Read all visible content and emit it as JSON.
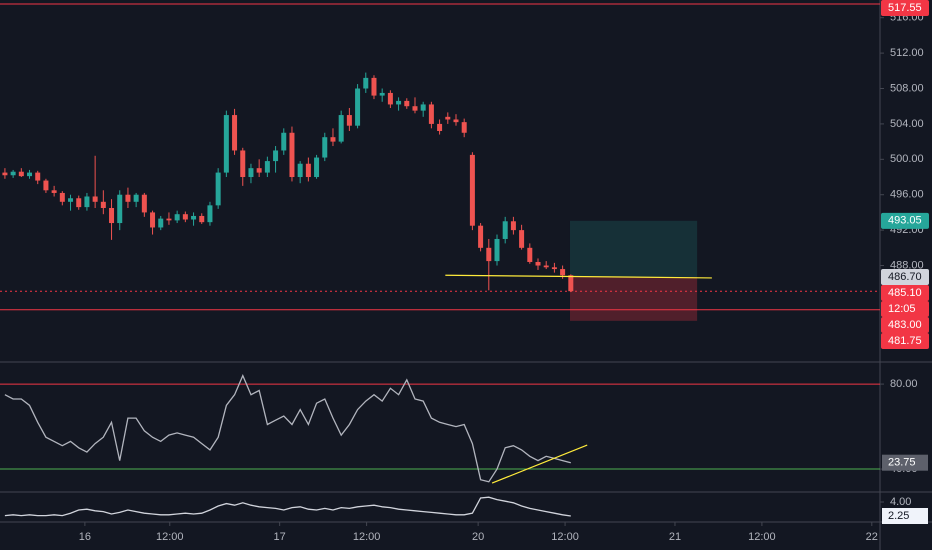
{
  "chart_data": [
    {
      "type": "candlestick",
      "up_color": "#26a69a",
      "down_color": "#ef5350",
      "ohlc": [
        [
          498.5,
          499,
          497.8,
          498.2
        ],
        [
          498.2,
          498.8,
          497.9,
          498.6
        ],
        [
          498.6,
          499,
          498,
          498.1
        ],
        [
          498.1,
          498.8,
          497.8,
          498.5
        ],
        [
          498.5,
          498.7,
          497.2,
          497.6
        ],
        [
          497.6,
          497.8,
          496.2,
          496.5
        ],
        [
          496.5,
          497,
          495.8,
          496.2
        ],
        [
          496.2,
          496.4,
          494.8,
          495.2
        ],
        [
          495.2,
          496,
          494.2,
          495.6
        ],
        [
          495.6,
          495.9,
          494.3,
          494.6
        ],
        [
          494.6,
          496.2,
          494.2,
          495.8
        ],
        [
          495.8,
          500.4,
          494.5,
          495.2
        ],
        [
          495.2,
          496.5,
          493.8,
          494.5
        ],
        [
          494.5,
          495.5,
          490.9,
          492.8
        ],
        [
          492.8,
          496.5,
          492,
          496
        ],
        [
          496,
          496.8,
          494.5,
          495.2
        ],
        [
          495.2,
          496.2,
          494.6,
          496
        ],
        [
          496,
          496.2,
          493.5,
          494
        ],
        [
          494,
          494.2,
          491.5,
          492.3
        ],
        [
          492.3,
          493.6,
          492,
          493.3
        ],
        [
          493.3,
          494,
          492.6,
          493.1
        ],
        [
          493.1,
          494.2,
          492.8,
          493.8
        ],
        [
          493.8,
          494.1,
          492.9,
          493.2
        ],
        [
          493.2,
          494,
          492.5,
          493.6
        ],
        [
          493.6,
          493.9,
          492.7,
          492.9
        ],
        [
          492.9,
          495.2,
          492.5,
          494.8
        ],
        [
          494.8,
          499,
          494.4,
          498.5
        ],
        [
          498.5,
          505.5,
          498,
          505
        ],
        [
          505,
          505.7,
          500.5,
          501
        ],
        [
          501,
          501.3,
          497,
          498
        ],
        [
          498,
          499.5,
          497.3,
          499
        ],
        [
          499,
          500,
          498,
          498.5
        ],
        [
          498.5,
          500.3,
          498,
          499.8
        ],
        [
          499.8,
          501.5,
          498.5,
          501
        ],
        [
          501,
          503.5,
          500.5,
          503
        ],
        [
          503,
          503.7,
          497.5,
          498
        ],
        [
          498,
          499.8,
          497.3,
          499.5
        ],
        [
          499.5,
          500.2,
          497.5,
          498
        ],
        [
          498,
          500.5,
          497.8,
          500.2
        ],
        [
          500.2,
          503,
          499.8,
          502.5
        ],
        [
          502.5,
          503.5,
          501.5,
          502
        ],
        [
          502,
          505.5,
          501.8,
          505
        ],
        [
          505,
          505.8,
          503.2,
          503.8
        ],
        [
          503.8,
          508.5,
          503.5,
          508
        ],
        [
          508,
          509.8,
          507.5,
          509.2
        ],
        [
          509.2,
          509.5,
          506.8,
          507.2
        ],
        [
          507.2,
          508,
          506.5,
          507.5
        ],
        [
          507.5,
          507.8,
          505.8,
          506.2
        ],
        [
          506.2,
          507,
          505.5,
          506.6
        ],
        [
          506.6,
          506.9,
          505.7,
          506
        ],
        [
          506,
          507,
          505.2,
          505.5
        ],
        [
          505.5,
          506.5,
          504.8,
          506.2
        ],
        [
          506.2,
          506.5,
          503.5,
          504
        ],
        [
          504,
          504.5,
          502.8,
          503.2
        ],
        [
          504.8,
          505.3,
          504,
          504.5
        ],
        [
          504.5,
          505.1,
          503.8,
          504.2
        ],
        [
          504.2,
          504.6,
          502.5,
          503
        ],
        [
          500.5,
          500.8,
          492,
          492.5
        ],
        [
          492.5,
          492.8,
          489.6,
          490
        ],
        [
          490,
          491,
          485.2,
          488.5
        ],
        [
          488.5,
          491.5,
          488,
          491
        ],
        [
          491,
          493.5,
          490.5,
          493
        ],
        [
          493,
          493.5,
          491.5,
          492
        ],
        [
          492,
          492.6,
          489.8,
          490
        ],
        [
          490,
          490.5,
          488.2,
          488.4
        ],
        [
          488.4,
          488.8,
          487.5,
          488
        ],
        [
          488,
          488.5,
          487.6,
          487.8
        ],
        [
          487.8,
          488.3,
          487.2,
          487.6
        ],
        [
          487.6,
          488,
          486.5,
          486.9
        ],
        [
          486.9,
          487,
          485,
          485.1
        ]
      ],
      "xlim": [
        -0.6,
        106.7
      ],
      "xticks": [
        {
          "value": 9.75,
          "label": "16"
        },
        {
          "value": 20.1,
          "label": "12:00"
        },
        {
          "value": 33.5,
          "label": "17"
        },
        {
          "value": 44.1,
          "label": "12:00"
        },
        {
          "value": 57.7,
          "label": "20"
        },
        {
          "value": 68.3,
          "label": "12:00"
        },
        {
          "value": 81.7,
          "label": "21"
        },
        {
          "value": 92.3,
          "label": "12:00"
        },
        {
          "value": 105.7,
          "label": "22"
        }
      ],
      "ylim": [
        477.1,
        518.0
      ],
      "yticks": [
        {
          "value": 516,
          "label": "516.00"
        },
        {
          "value": 512,
          "label": "512.00"
        },
        {
          "value": 508,
          "label": "508.00"
        },
        {
          "value": 504,
          "label": "504.00"
        },
        {
          "value": 500,
          "label": "500.00"
        },
        {
          "value": 496,
          "label": "496.00"
        },
        {
          "value": 492,
          "label": "492.00"
        },
        {
          "value": 488,
          "label": "488.00"
        }
      ],
      "hlines": [
        {
          "value": 517.55,
          "color": "#f23645",
          "style": "solid"
        },
        {
          "value": 485.1,
          "label": "485.10",
          "color": "#f23645",
          "style": "dotted"
        },
        {
          "value": 483,
          "label": "483.00",
          "color": "#f23645",
          "style": "solid"
        }
      ],
      "countdown": "12:05",
      "position": {
        "x": [
          68.9,
          84.4
        ],
        "entry": {
          "value": 486.7,
          "label": "486.70"
        },
        "target": 493.05,
        "stop": 481.75,
        "target_color": "#26a69a",
        "stop_color": "#f23645",
        "entry_color": "#d1d4dc"
      },
      "trendlines": [
        {
          "x": [
            53.7,
            86.2
          ],
          "y": [
            486.9,
            486.6
          ],
          "color": "#ffeb3b"
        }
      ]
    },
    {
      "type": "line",
      "color": "#b2b5be",
      "values": [
        75,
        73,
        73,
        70,
        62,
        55,
        53,
        51,
        53,
        50,
        48,
        52,
        55,
        62,
        44,
        64,
        64,
        58,
        55,
        53,
        56,
        57,
        56,
        55,
        52,
        49,
        55,
        70,
        75,
        84,
        75,
        77,
        61,
        63,
        65,
        61,
        68,
        61,
        71,
        73,
        64,
        56,
        61,
        68,
        72,
        75,
        72,
        78,
        75,
        82,
        73,
        72,
        64,
        62,
        61,
        60,
        61,
        52,
        35,
        34,
        40,
        50,
        51,
        49,
        46,
        44,
        46,
        45,
        44,
        43
      ],
      "ylim": [
        29.2,
        90.4
      ],
      "yticks": [
        {
          "value": 80,
          "label": "80.00"
        },
        {
          "value": 40,
          "label": "40.00"
        }
      ],
      "bands": [
        {
          "value": 80,
          "color": "#f23645"
        },
        {
          "value": 40,
          "color": "#4caf50"
        }
      ],
      "current": 23.75,
      "trendlines": [
        {
          "x": [
            59.4,
            71.0
          ],
          "y": [
            33.4,
            51.3
          ],
          "color": "#ffeb3b"
        }
      ]
    },
    {
      "type": "line",
      "color": "#d1d4dc",
      "values": [
        2.3,
        2.4,
        2.3,
        2.4,
        2.3,
        2.3,
        2.4,
        2.3,
        2.6,
        3.0,
        3.1,
        2.9,
        2.8,
        2.5,
        2.7,
        3.0,
        2.8,
        2.6,
        2.5,
        2.4,
        2.4,
        2.5,
        2.6,
        2.5,
        2.6,
        3.0,
        3.5,
        3.8,
        3.6,
        3.9,
        3.6,
        3.4,
        3.3,
        3.2,
        3.0,
        3.3,
        3.4,
        3.1,
        3.0,
        3.2,
        3.0,
        3.3,
        3.2,
        3.4,
        3.5,
        3.6,
        3.4,
        3.3,
        3.1,
        3.0,
        2.9,
        2.8,
        2.7,
        2.6,
        2.5,
        2.4,
        2.4,
        2.6,
        4.5,
        4.6,
        4.3,
        4.1,
        3.9,
        3.5,
        3.2,
        3.0,
        2.8,
        2.6,
        2.4,
        2.25
      ],
      "ylim": [
        1.5,
        5.25
      ],
      "yticks": [
        {
          "value": 4,
          "label": "4.00"
        }
      ]
    }
  ]
}
